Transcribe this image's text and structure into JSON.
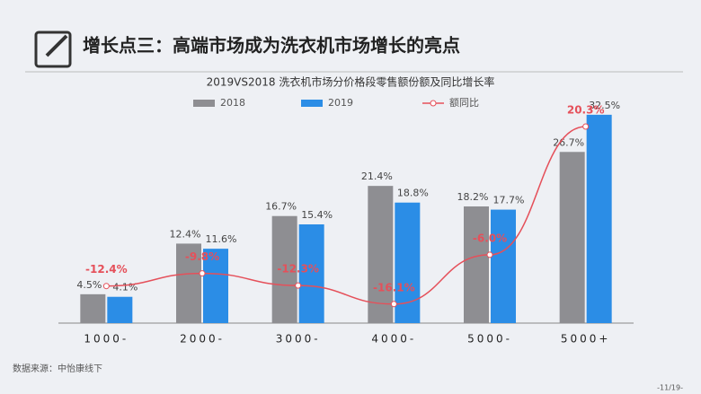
{
  "heading": "增长点三：高端市场成为洗衣机市场增长的亮点",
  "chart_data": {
    "type": "bar-line",
    "title": "2019VS2018 洗衣机市场分价格段零售额份额及同比增长率",
    "categories": [
      "1000-",
      "2000-",
      "3000-",
      "4000-",
      "5000-",
      "5000+"
    ],
    "series": [
      {
        "name": "2018",
        "color": "#8e8e92",
        "values": [
          4.5,
          12.4,
          16.7,
          21.4,
          18.2,
          26.7
        ],
        "value_labels": [
          "4.5%",
          "12.4%",
          "16.7%",
          "21.4%",
          "18.2%",
          "26.7%"
        ]
      },
      {
        "name": "2019",
        "color": "#2b8de6",
        "values": [
          4.1,
          11.6,
          15.4,
          18.8,
          17.7,
          32.5
        ],
        "value_labels": [
          "4.1%",
          "11.6%",
          "15.4%",
          "18.8%",
          "17.7%",
          "32.5%"
        ]
      },
      {
        "name": "额同比",
        "type": "line",
        "axis": "y2",
        "color": "#e5505a",
        "values": [
          -12.4,
          -9.8,
          -12.3,
          -16.1,
          -6.0,
          20.3
        ],
        "value_labels": [
          "-12.4%",
          "-9.8%",
          "-12.3%",
          "-16.1%",
          "-6.0%",
          "20.3%"
        ]
      }
    ],
    "ylim": [
      0,
      35
    ],
    "y2lim": [
      -20,
      26
    ],
    "source": "数据来源：中怡康线下",
    "page": "-11/19-"
  }
}
